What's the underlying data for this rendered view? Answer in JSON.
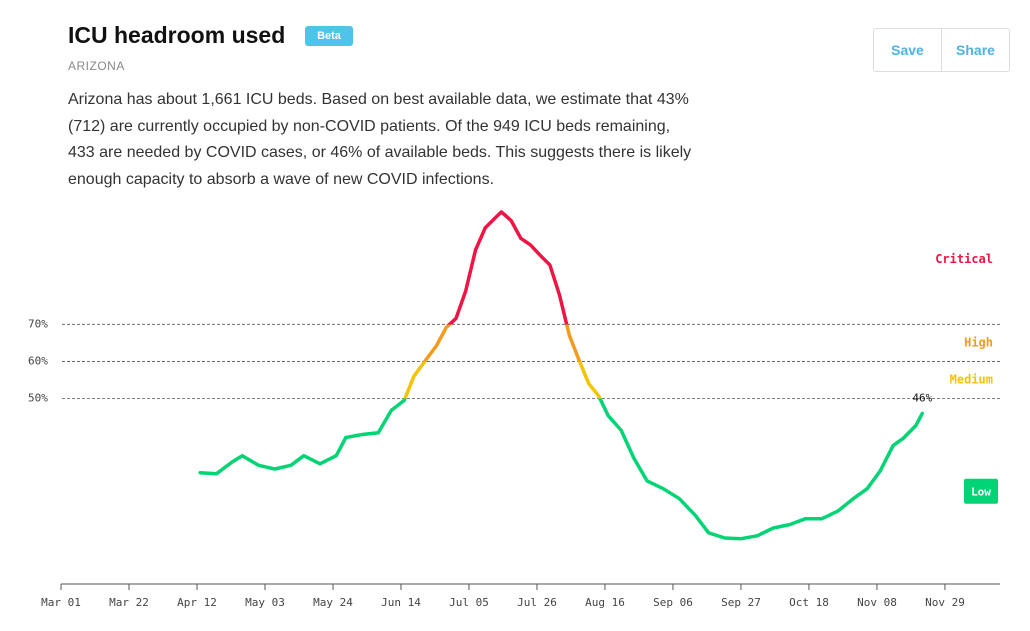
{
  "header": {
    "title": "ICU headroom used",
    "badge": "Beta",
    "region": "ARIZONA",
    "description": "Arizona has about 1,661 ICU beds. Based on best available data, we estimate that 43% (712) are currently occupied by non-COVID patients. Of the 949 ICU beds remaining, 433 are needed by COVID cases, or 46% of available beds. This suggests there is likely enough capacity to absorb a wave of new COVID infections.",
    "buttons": [
      "Save",
      "Share"
    ]
  },
  "chart_data": {
    "type": "line",
    "x": [
      "Apr 13",
      "Apr 18",
      "Apr 23",
      "Apr 26",
      "May 01",
      "May 06",
      "May 11",
      "May 15",
      "May 20",
      "May 25",
      "May 28",
      "Jun 02",
      "Jun 07",
      "Jun 11",
      "Jun 15",
      "Jun 18",
      "Jun 22",
      "Jun 25",
      "Jun 28",
      "Jul 01",
      "Jul 04",
      "Jul 07",
      "Jul 10",
      "Jul 13",
      "Jul 15",
      "Jul 18",
      "Jul 21",
      "Jul 24",
      "Jul 27",
      "Jul 30",
      "Aug 02",
      "Aug 05",
      "Aug 08",
      "Aug 11",
      "Aug 14",
      "Aug 17",
      "Aug 21",
      "Aug 25",
      "Aug 29",
      "Sep 03",
      "Sep 08",
      "Sep 13",
      "Sep 17",
      "Sep 22",
      "Sep 27",
      "Oct 02",
      "Oct 07",
      "Oct 12",
      "Oct 17",
      "Oct 22",
      "Oct 27",
      "Nov 01",
      "Nov 05",
      "Nov 09",
      "Nov 13",
      "Nov 16",
      "Nov 20",
      "Nov 22"
    ],
    "values": [
      30,
      29.7,
      33,
      34.6,
      32,
      31,
      32,
      34.6,
      32.4,
      34.6,
      39.5,
      40.3,
      40.8,
      46.8,
      49.5,
      56,
      60.8,
      64.3,
      69.2,
      71.6,
      79,
      90,
      96,
      98.6,
      100.3,
      98,
      93.2,
      91.4,
      88.6,
      86,
      77.8,
      67,
      60.3,
      54,
      50.8,
      45.4,
      41.4,
      33.8,
      27.8,
      25.7,
      23,
      18.4,
      13.8,
      12.4,
      12.2,
      13,
      15.1,
      16,
      17.6,
      17.6,
      19.7,
      23.2,
      25.7,
      30.5,
      37.3,
      39.2,
      42.7,
      46
    ],
    "value_labels": [
      null,
      null,
      null,
      null,
      null,
      null,
      null,
      null,
      null,
      null,
      null,
      null,
      null,
      null,
      null,
      null,
      null,
      null,
      null,
      null,
      null,
      null,
      null,
      null,
      null,
      null,
      null,
      null,
      null,
      null,
      null,
      null,
      null,
      null,
      null,
      null,
      null,
      null,
      null,
      null,
      null,
      null,
      null,
      null,
      null,
      null,
      null,
      null,
      null,
      null,
      null,
      null,
      null,
      null,
      null,
      null,
      null,
      "46%"
    ],
    "xlim": [
      "Mar 01",
      "Dec 16"
    ],
    "xticks": [
      "Mar 01",
      "Mar 22",
      "Apr 12",
      "May 03",
      "May 24",
      "Jun 14",
      "Jul 05",
      "Jul 26",
      "Aug 16",
      "Sep 06",
      "Sep 27",
      "Oct 18",
      "Nov 08",
      "Nov 29"
    ],
    "ylim": [
      0,
      105
    ],
    "yticks": [
      {
        "value": 50,
        "label": "50%"
      },
      {
        "value": 60,
        "label": "60%"
      },
      {
        "value": 70,
        "label": "70%"
      }
    ],
    "grid": true,
    "zones": [
      {
        "label": "Low",
        "color": "#00d474"
      },
      {
        "label": "Medium",
        "color": "#f5c400"
      },
      {
        "label": "High",
        "color": "#f59b1b"
      },
      {
        "label": "Critical",
        "color": "#ee1544"
      }
    ]
  }
}
